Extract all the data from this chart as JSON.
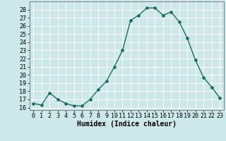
{
  "x": [
    0,
    1,
    2,
    3,
    4,
    5,
    6,
    7,
    8,
    9,
    10,
    11,
    12,
    13,
    14,
    15,
    16,
    17,
    18,
    19,
    20,
    21,
    22,
    23
  ],
  "y": [
    16.5,
    16.3,
    17.8,
    17.0,
    16.5,
    16.2,
    16.2,
    17.0,
    18.2,
    19.2,
    21.0,
    23.0,
    26.7,
    27.3,
    28.2,
    28.2,
    27.3,
    27.7,
    26.5,
    24.5,
    21.8,
    19.7,
    18.5,
    17.2
  ],
  "line_color": "#1a7060",
  "marker": "D",
  "marker_size": 2.0,
  "bg_color": "#cce8e8",
  "grid_color": "#ffffff",
  "xlabel": "Humidex (Indice chaleur)",
  "xlim": [
    -0.5,
    23.5
  ],
  "ylim": [
    15.7,
    29.0
  ],
  "yticks": [
    16,
    17,
    18,
    19,
    20,
    21,
    22,
    23,
    24,
    25,
    26,
    27,
    28
  ],
  "xticks": [
    0,
    1,
    2,
    3,
    4,
    5,
    6,
    7,
    8,
    9,
    10,
    11,
    12,
    13,
    14,
    15,
    16,
    17,
    18,
    19,
    20,
    21,
    22,
    23
  ],
  "tick_fontsize": 6.0,
  "xlabel_fontsize": 7.0
}
